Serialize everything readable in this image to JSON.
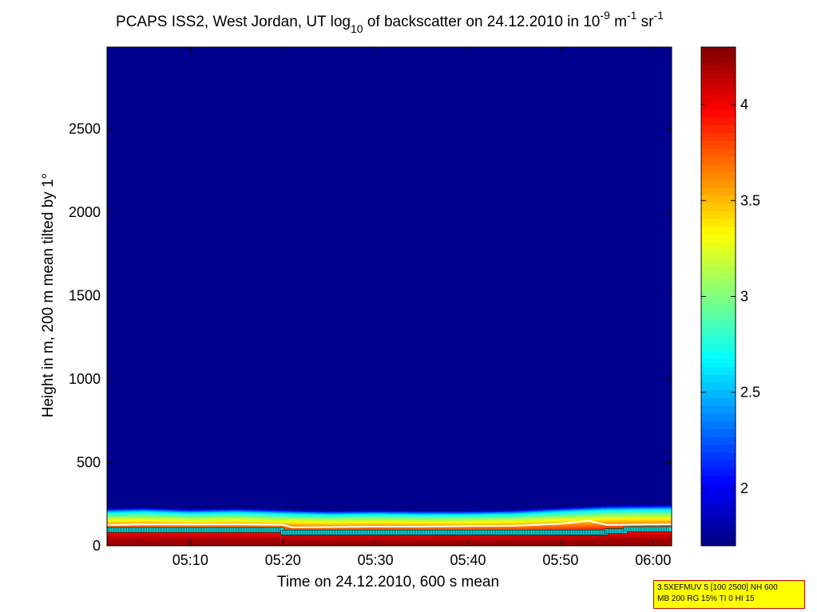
{
  "title": {
    "prefix": "PCAPS ISS2, West Jordan, UT log",
    "sub": "10",
    "mid": " of backscatter on 24.12.2010 in 10",
    "sup1": "-9",
    "mid2": " m",
    "sup2": "-1",
    "mid3": " sr",
    "sup3": "-1"
  },
  "info_box": {
    "line1": "3.5XEFMUV 5 [100 2500] NH 600",
    "line2": "MB 200 RG 15% TI 0 HI 15"
  },
  "chart_data": {
    "type": "heatmap",
    "xlabel": "Time on 24.12.2010, 600 s mean",
    "ylabel": "Height in m, 200 m mean tilted by 1°",
    "xlim": [
      "05:01",
      "06:02"
    ],
    "ylim": [
      0,
      2990
    ],
    "x_ticks": [
      "05:10",
      "05:20",
      "05:30",
      "05:40",
      "05:50",
      "06:00"
    ],
    "y_ticks": [
      0,
      500,
      1000,
      1500,
      2000,
      2500
    ],
    "colorbar": {
      "ticks": [
        2,
        2.5,
        3,
        3.5,
        4
      ],
      "range": [
        1.7,
        4.3
      ],
      "colormap": "jet"
    },
    "background_value": 1.75,
    "layer_top_height_m": [
      {
        "x": "05:01",
        "y": 240
      },
      {
        "x": "05:05",
        "y": 245
      },
      {
        "x": "05:10",
        "y": 235
      },
      {
        "x": "05:15",
        "y": 240
      },
      {
        "x": "05:20",
        "y": 232
      },
      {
        "x": "05:25",
        "y": 225
      },
      {
        "x": "05:30",
        "y": 228
      },
      {
        "x": "05:35",
        "y": 225
      },
      {
        "x": "05:40",
        "y": 225
      },
      {
        "x": "05:45",
        "y": 230
      },
      {
        "x": "05:50",
        "y": 245
      },
      {
        "x": "05:55",
        "y": 258
      },
      {
        "x": "06:02",
        "y": 262
      }
    ],
    "white_contour_height_m": [
      {
        "x": "05:01",
        "y": 125
      },
      {
        "x": "05:05",
        "y": 128
      },
      {
        "x": "05:10",
        "y": 128
      },
      {
        "x": "05:15",
        "y": 128
      },
      {
        "x": "05:20",
        "y": 126
      },
      {
        "x": "05:21",
        "y": 110
      },
      {
        "x": "05:25",
        "y": 112
      },
      {
        "x": "05:30",
        "y": 115
      },
      {
        "x": "05:35",
        "y": 115
      },
      {
        "x": "05:40",
        "y": 118
      },
      {
        "x": "05:45",
        "y": 120
      },
      {
        "x": "05:50",
        "y": 132
      },
      {
        "x": "05:53",
        "y": 150
      },
      {
        "x": "05:55",
        "y": 125
      },
      {
        "x": "06:00",
        "y": 128
      },
      {
        "x": "06:02",
        "y": 130
      }
    ],
    "mixing_height_points": {
      "segments": [
        {
          "from": "05:01",
          "to": "05:20",
          "y": 95
        },
        {
          "from": "05:20",
          "to": "05:55",
          "y": 80
        },
        {
          "from": "05:55",
          "to": "05:57",
          "y": 88
        },
        {
          "from": "05:57",
          "to": "06:02",
          "y": 100
        }
      ]
    }
  }
}
